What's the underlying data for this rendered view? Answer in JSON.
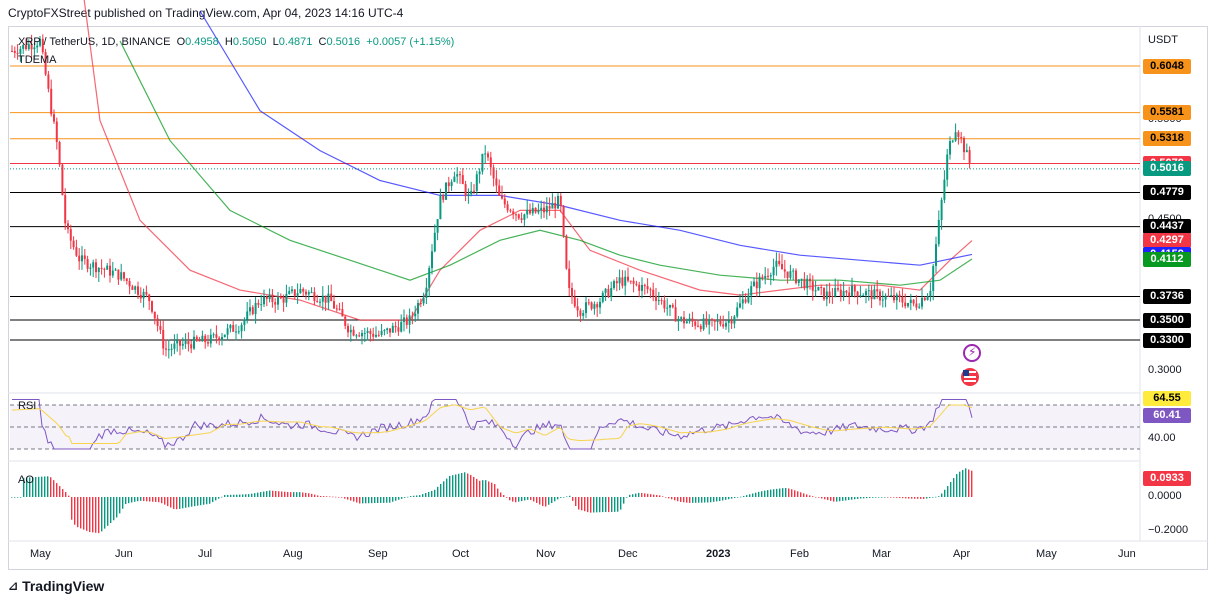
{
  "header": {
    "publisher_line": "CryptoFXStreet published on TradingView.com, Apr 04, 2023 14:16 UTC-4"
  },
  "legend": {
    "symbol": "XRP / TetherUS, 1D, BINANCE",
    "o_label": "O",
    "o_value": "0.4958",
    "h_label": "H",
    "h_value": "0.5050",
    "l_label": "L",
    "l_value": "0.4871",
    "c_label": "C",
    "c_value": "0.5016",
    "change": "+0.0057 (+1.15%)",
    "indicator": "TDEMA"
  },
  "axis": {
    "currency": "USDT",
    "plain_ticks": [
      "0.5500",
      "0.4500",
      "0.3000",
      "40.00",
      "0.0000",
      "−0.2000"
    ]
  },
  "price_tags": [
    {
      "value": "0.6048",
      "bg": "#f7931a",
      "fg": "#000000"
    },
    {
      "value": "0.5581",
      "bg": "#f7931a",
      "fg": "#000000"
    },
    {
      "value": "0.5318",
      "bg": "#f7931a",
      "fg": "#000000"
    },
    {
      "value": "0.5070",
      "bg": "#f23645",
      "fg": "#ffffff"
    },
    {
      "value": "0.5016",
      "bg": "#089981",
      "fg": "#ffffff"
    },
    {
      "value": "0.4779",
      "bg": "#000000",
      "fg": "#ffffff"
    },
    {
      "value": "0.4437",
      "bg": "#000000",
      "fg": "#ffffff"
    },
    {
      "value": "0.4297",
      "bg": "#f23645",
      "fg": "#ffffff"
    },
    {
      "value": "0.4159",
      "bg": "#1e22ff",
      "fg": "#ffffff"
    },
    {
      "value": "0.4112",
      "bg": "#089920",
      "fg": "#ffffff"
    },
    {
      "value": "0.3736",
      "bg": "#000000",
      "fg": "#ffffff"
    },
    {
      "value": "0.3500",
      "bg": "#000000",
      "fg": "#ffffff"
    },
    {
      "value": "0.3300",
      "bg": "#000000",
      "fg": "#ffffff"
    }
  ],
  "rsi": {
    "label": "RSI",
    "tag1": "64.55",
    "tag1_bg": "#ffeb3b",
    "tag2": "60.41",
    "tag2_bg": "#7e57c2"
  },
  "ao": {
    "label": "AO",
    "tag": "0.0933",
    "tag_bg": "#f23645"
  },
  "time_axis": [
    "May",
    "Jun",
    "Jul",
    "Aug",
    "Sep",
    "Oct",
    "Nov",
    "Dec",
    "2023",
    "Feb",
    "Mar",
    "Apr",
    "May",
    "Jun"
  ],
  "footer": {
    "brand": "TradingView"
  },
  "icons": {
    "flash": "lightning-icon",
    "flag": "us-flag-icon"
  },
  "chart_data": {
    "type": "candlestick",
    "symbol": "XRP/USDT",
    "timeframe": "1D",
    "horizontal_levels": [
      0.6048,
      0.5581,
      0.5318,
      0.507,
      0.4779,
      0.4437,
      0.3736,
      0.35,
      0.33
    ],
    "last_close": 0.5016,
    "moving_averages": [
      {
        "color": "#f23645",
        "last": 0.4297
      },
      {
        "color": "#1e22ff",
        "last": 0.4159
      },
      {
        "color": "#089920",
        "last": 0.4112
      }
    ],
    "close_series_approx": {
      "months": [
        "May",
        "Jun",
        "Jul",
        "Aug",
        "Sep",
        "Oct",
        "Nov",
        "Dec",
        "Jan",
        "Feb",
        "Mar",
        "Apr"
      ],
      "close": [
        0.4,
        0.32,
        0.34,
        0.37,
        0.33,
        0.48,
        0.46,
        0.37,
        0.36,
        0.4,
        0.38,
        0.5
      ]
    },
    "rsi": {
      "last": 64.55,
      "ma": 60.41
    },
    "ao": {
      "last": 0.0933
    }
  }
}
